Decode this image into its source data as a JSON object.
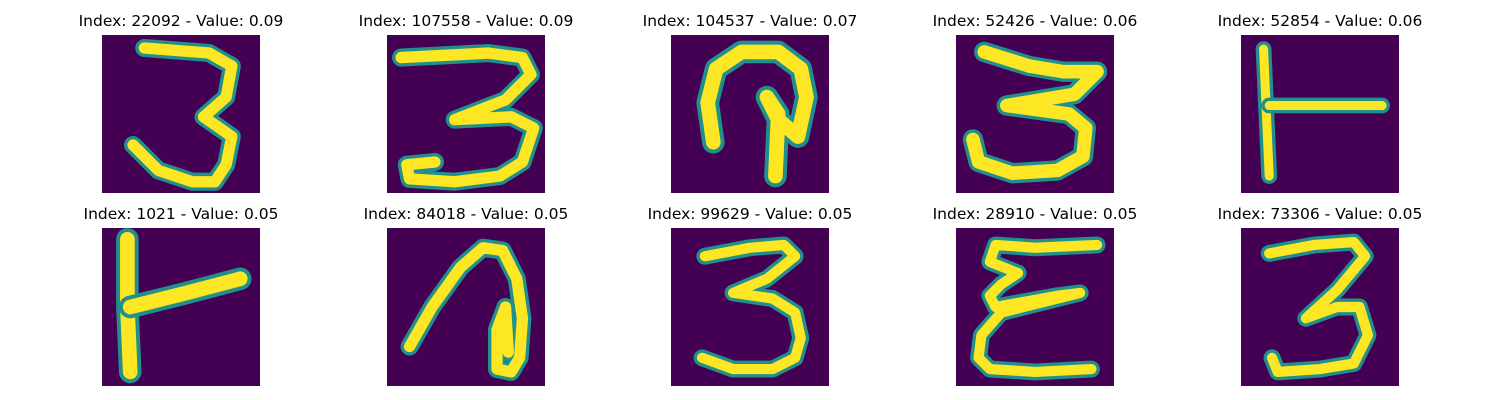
{
  "colors": {
    "background": "#440154",
    "stroke_main": "#fde725",
    "stroke_edge": "#21908d",
    "stroke_mid": "#5ec962"
  },
  "panels": [
    {
      "title": "Index: 22092 - Value: 0.09",
      "digit_icon": "handwritten-3-icon"
    },
    {
      "title": "Index: 107558 - Value: 0.09",
      "digit_icon": "handwritten-3-icon"
    },
    {
      "title": "Index: 104537 - Value: 0.07",
      "digit_icon": "handwritten-loop-icon"
    },
    {
      "title": "Index: 52426 - Value: 0.06",
      "digit_icon": "handwritten-3-icon"
    },
    {
      "title": "Index: 52854 - Value: 0.06",
      "digit_icon": "handwritten-t-icon"
    },
    {
      "title": "Index: 1021 - Value: 0.05",
      "digit_icon": "handwritten-t-icon"
    },
    {
      "title": "Index: 84018 - Value: 0.05",
      "digit_icon": "handwritten-7-icon"
    },
    {
      "title": "Index: 99629 - Value: 0.05",
      "digit_icon": "handwritten-3-icon"
    },
    {
      "title": "Index: 28910 - Value: 0.05",
      "digit_icon": "handwritten-e-icon"
    },
    {
      "title": "Index: 73306 - Value: 0.05",
      "digit_icon": "handwritten-3-icon"
    }
  ]
}
